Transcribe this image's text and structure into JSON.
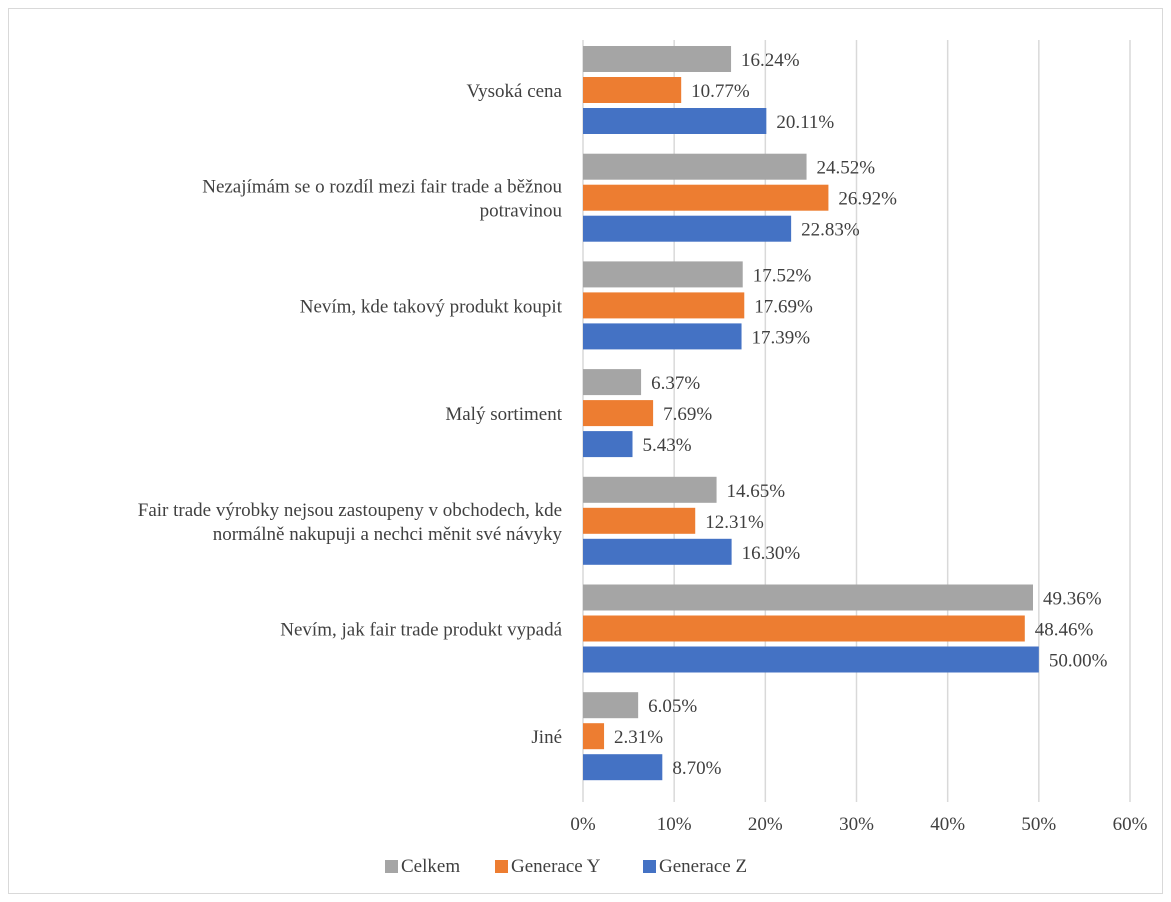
{
  "chart_data": {
    "type": "bar",
    "orientation": "horizontal",
    "categories": [
      "Vysoká cena",
      "Nezajímám se o rozdíl mezi fair trade a běžnou potravinou",
      "Nevím, kde takový produkt koupit",
      "Malý sortiment",
      "Fair trade výrobky nejsou zastoupeny v obchodech, kde normálně nakupuji a nechci měnit své návyky",
      "Nevím, jak fair trade produkt vypadá",
      "Jiné"
    ],
    "category_lines": [
      [
        "Vysoká cena"
      ],
      [
        "Nezajímám se o rozdíl mezi fair trade a běžnou",
        "potravinou"
      ],
      [
        "Nevím, kde takový produkt koupit"
      ],
      [
        "Malý sortiment"
      ],
      [
        "Fair trade výrobky nejsou zastoupeny v obchodech, kde",
        "normálně nakupuji a nechci měnit své návyky"
      ],
      [
        "Nevím, jak fair trade produkt vypadá"
      ],
      [
        "Jiné"
      ]
    ],
    "series": [
      {
        "name": "Celkem",
        "color": "#a5a5a5",
        "values": [
          16.24,
          24.52,
          17.52,
          6.37,
          14.65,
          49.36,
          6.05
        ],
        "labels": [
          "16.24%",
          "24.52%",
          "17.52%",
          "6.37%",
          "14.65%",
          "49.36%",
          "6.05%"
        ]
      },
      {
        "name": "Generace Y",
        "color": "#ed7d31",
        "values": [
          10.77,
          26.92,
          17.69,
          7.69,
          12.31,
          48.46,
          2.31
        ],
        "labels": [
          "10.77%",
          "26.92%",
          "17.69%",
          "7.69%",
          "12.31%",
          "48.46%",
          "2.31%"
        ]
      },
      {
        "name": "Generace Z",
        "color": "#4472c4",
        "values": [
          20.11,
          22.83,
          17.39,
          5.43,
          16.3,
          50.0,
          8.7
        ],
        "labels": [
          "20.11%",
          "22.83%",
          "17.39%",
          "5.43%",
          "16.30%",
          "50.00%",
          "8.70%"
        ]
      }
    ],
    "xlim": [
      0,
      60
    ],
    "xticks": [
      0,
      10,
      20,
      30,
      40,
      50,
      60
    ],
    "xtick_labels": [
      "0%",
      "10%",
      "20%",
      "30%",
      "40%",
      "50%",
      "60%"
    ],
    "grid": true,
    "legend_position": "bottom",
    "gridline_color": "#d9d9d9",
    "text_color": "#404040"
  }
}
